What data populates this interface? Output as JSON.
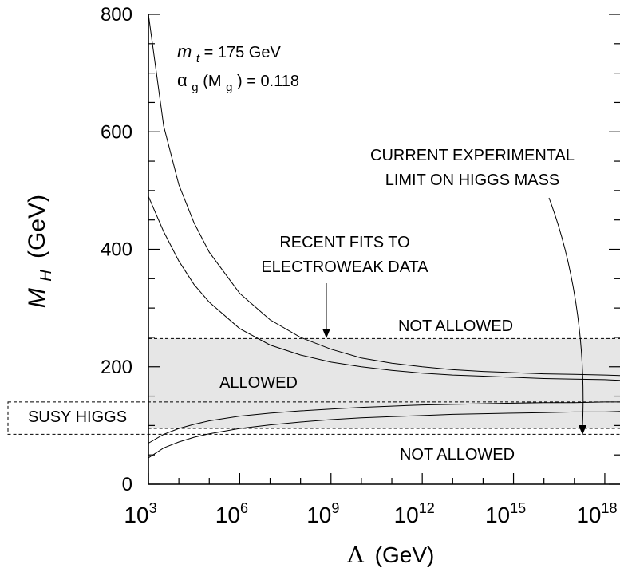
{
  "chart_data": {
    "type": "line",
    "xlabel_symbol": "Λ",
    "xlabel_unit": "(GeV)",
    "ylabel_main": "M",
    "ylabel_sub": "H",
    "ylabel_unit": "(GeV)",
    "x_log10_range": [
      3,
      18.5
    ],
    "ylim": [
      0,
      800
    ],
    "x_ticks": [
      {
        "base": "10",
        "exp": "3",
        "log10": 3
      },
      {
        "base": "10",
        "exp": "6",
        "log10": 6
      },
      {
        "base": "10",
        "exp": "9",
        "log10": 9
      },
      {
        "base": "10",
        "exp": "12",
        "log10": 12
      },
      {
        "base": "10",
        "exp": "15",
        "log10": 15
      },
      {
        "base": "10",
        "exp": "18",
        "log10": 18
      }
    ],
    "y_ticks": [
      "0",
      "200",
      "400",
      "600",
      "800"
    ],
    "params": {
      "mt_symbol": "m",
      "mt_sub": "t",
      "mt_value": " = 175 GeV",
      "alpha_symbol": "α",
      "alpha_sub": "g",
      "alpha_arg_open": "(M",
      "alpha_arg_sub": "g",
      "alpha_value": ") = 0.118"
    },
    "allowed_band": {
      "y_min": 95,
      "y_max": 248
    },
    "susy_band": {
      "y_min": 85,
      "y_max": 140
    },
    "series": [
      {
        "log10_lambda": [
          3,
          3.5,
          4,
          4.5,
          5,
          6,
          7,
          8,
          9,
          10,
          11,
          12,
          13,
          14,
          15,
          16,
          17,
          18,
          18.5
        ],
        "mh": [
          800,
          610,
          510,
          445,
          395,
          325,
          280,
          250,
          230,
          215,
          206,
          200,
          195,
          192,
          190,
          188,
          187,
          186,
          185
        ]
      },
      {
        "log10_lambda": [
          3,
          3.5,
          4,
          4.5,
          5,
          6,
          7,
          8,
          9,
          10,
          11,
          12,
          13,
          14,
          15,
          16,
          17,
          18,
          18.5
        ],
        "mh": [
          490,
          430,
          380,
          340,
          310,
          265,
          237,
          220,
          208,
          200,
          194,
          189,
          186,
          184,
          182,
          180,
          179,
          178,
          177
        ]
      },
      {
        "log10_lambda": [
          3,
          3.5,
          4,
          4.5,
          5,
          6,
          7,
          8,
          9,
          10,
          11,
          12,
          13,
          14,
          15,
          16,
          17,
          18,
          18.5
        ],
        "mh": [
          70,
          85,
          95,
          102,
          108,
          116,
          121,
          125,
          128,
          131,
          133,
          135,
          136,
          137,
          138,
          139,
          139,
          140,
          140
        ]
      },
      {
        "log10_lambda": [
          3,
          3.5,
          4,
          4.5,
          5,
          6,
          7,
          8,
          9,
          10,
          11,
          12,
          13,
          14,
          15,
          16,
          17,
          18,
          18.5
        ],
        "mh": [
          45,
          62,
          72,
          80,
          86,
          95,
          101,
          106,
          110,
          113,
          115,
          117,
          119,
          120,
          121,
          122,
          123,
          123,
          124
        ]
      }
    ],
    "annotations": {
      "ew_fits_line1": "RECENT FITS TO",
      "ew_fits_line2": "ELECTROWEAK DATA",
      "exp_limit_line1": "CURRENT EXPERIMENTAL",
      "exp_limit_line2": "LIMIT ON HIGGS MASS",
      "not_allowed_upper": "NOT ALLOWED",
      "allowed": "ALLOWED",
      "susy_higgs": "SUSY HIGGS",
      "not_allowed_lower": "NOT ALLOWED"
    }
  }
}
